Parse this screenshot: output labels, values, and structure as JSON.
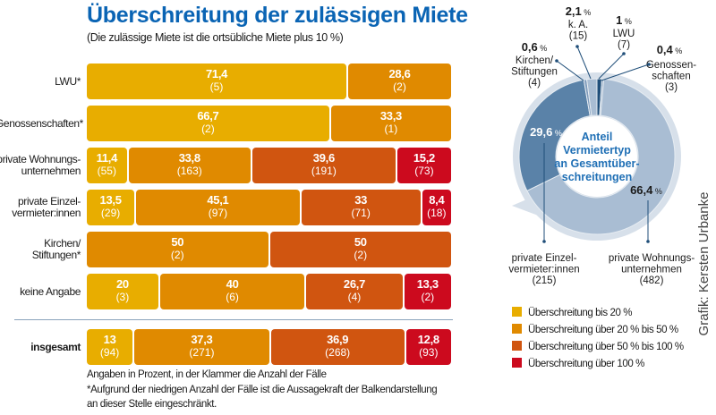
{
  "chart_data": [
    {
      "type": "bar",
      "orientation": "horizontal-stacked-100",
      "title": "Überschreitung der zulässigen Miete",
      "subtitle": "(Die zulässige Miete ist die ortsübliche Miete plus 10 %)",
      "categories": [
        "LWU*",
        "Genossenschaften*",
        "private Wohnungs-unternehmen",
        "private Einzel-vermieter:innen",
        "Kirchen/ Stiftungen*",
        "keine Angabe",
        "insgesamt"
      ],
      "series": [
        {
          "name": "Überschreitung bis 20 %",
          "color": "#e8ad00",
          "values": [
            71.4,
            66.7,
            11.4,
            13.5,
            null,
            20,
            13
          ],
          "labels": [
            "71,4",
            "66,7",
            "11,4",
            "13,5",
            null,
            "20",
            "13"
          ],
          "counts": [
            "(5)",
            "(2)",
            "(55)",
            "(29)",
            null,
            "(3)",
            "(94)"
          ]
        },
        {
          "name": "Überschreitung über 20 % bis 50 %",
          "color": "#e08a00",
          "values": [
            28.6,
            33.3,
            33.8,
            45.1,
            50,
            40,
            37.3
          ],
          "labels": [
            "28,6",
            "33,3",
            "33,8",
            "45,1",
            "50",
            "40",
            "37,3"
          ],
          "counts": [
            "(2)",
            "(1)",
            "(163)",
            "(97)",
            "(2)",
            "(6)",
            "(271)"
          ]
        },
        {
          "name": "Überschreitung über 50 % bis 100 %",
          "color": "#d05510",
          "values": [
            null,
            null,
            39.6,
            33,
            50,
            26.7,
            36.9
          ],
          "labels": [
            null,
            null,
            "39,6",
            "33",
            "50",
            "26,7",
            "36,9"
          ],
          "counts": [
            null,
            null,
            "(191)",
            "(71)",
            "(2)",
            "(4)",
            "(268)"
          ]
        },
        {
          "name": "Überschreitung über 100 %",
          "color": "#cc0a1e",
          "values": [
            null,
            null,
            15.2,
            8.4,
            null,
            13.3,
            12.8
          ],
          "labels": [
            null,
            null,
            "15,2",
            "8,4",
            null,
            "13,3",
            "12,8"
          ],
          "counts": [
            null,
            null,
            "(73)",
            "(18)",
            null,
            "(2)",
            "(93)"
          ]
        }
      ],
      "xlim": [
        0,
        100
      ],
      "legend": "bottom-right",
      "notes": [
        "Angaben in Prozent, in der Klammer die Anzahl der Fälle",
        "*Aufgrund der niedrigen Anzahl der Fälle ist die Aussagekraft der Balkendarstellung",
        "an dieser Stelle eingeschränkt."
      ]
    },
    {
      "type": "pie",
      "variant": "donut",
      "title": [
        "Anteil",
        "Vermietertyp",
        "an Gesamtüber-",
        "schreitungen"
      ],
      "slices": [
        {
          "name": "LWU",
          "value": 1,
          "label": "1",
          "count": "(7)",
          "color": "#1f4e79"
        },
        {
          "name": "Genossen-schaften",
          "value": 0.4,
          "label": "0,4",
          "count": "(3)",
          "color": "#8fa8c4"
        },
        {
          "name": "private Wohnungs-unternehmen",
          "value": 66.4,
          "label": "66,4",
          "count": "(482)",
          "color": "#a9bdd3"
        },
        {
          "name": "private Einzel-vermieter:innen",
          "value": 29.6,
          "label": "29,6",
          "count": "(215)",
          "color": "#5a82a8"
        },
        {
          "name": "Kirchen/ Stiftungen",
          "value": 0.6,
          "label": "0,6",
          "count": "(4)",
          "color": "#7f9bbb"
        },
        {
          "name": "k. A.",
          "value": 2.1,
          "label": "2,1",
          "count": "(15)",
          "color": "#a9bdd3"
        }
      ],
      "unit": "%"
    }
  ],
  "credit": "Grafik: Kersten Urbanke"
}
